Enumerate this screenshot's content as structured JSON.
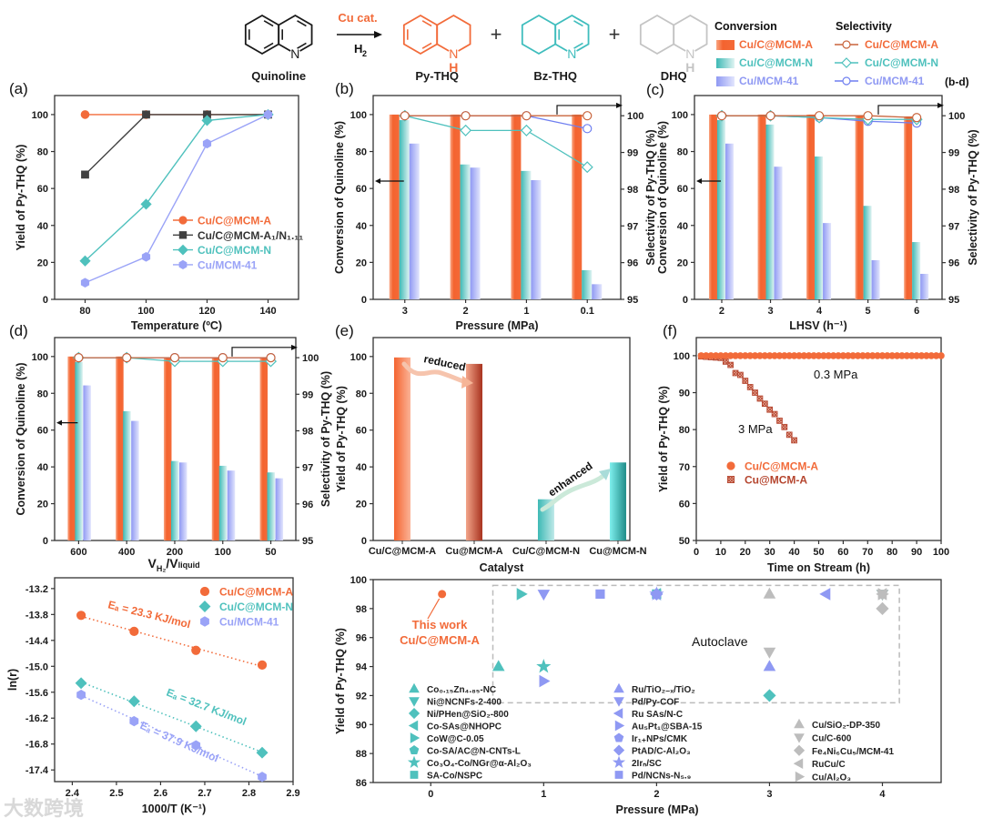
{
  "scheme": {
    "catalyst": "Cu cat.",
    "reagent": "H",
    "reagent_sub": "2",
    "atom_N": "N",
    "atom_H": "H",
    "plus": "+",
    "molecules": [
      {
        "name": "Quinoline",
        "color": "#1a1a1a"
      },
      {
        "name": "Py-THQ",
        "color": "#f26b3a"
      },
      {
        "name": "Bz-THQ",
        "color": "#3fbdbd"
      },
      {
        "name": "DHQ",
        "color": "#c4c4c4"
      }
    ]
  },
  "legend_bd": {
    "conversion_title": "Conversion",
    "selectivity_title": "Selectivity",
    "panel_ref": "(b-d)",
    "items": [
      {
        "label": "Cu/C@MCM-A",
        "bar_color": "#f4632f",
        "line_color": "#c8643c",
        "text_color": "#f26b3a",
        "marker": "circle"
      },
      {
        "label": "Cu/C@MCM-N",
        "bar_color": "#4fc1bd",
        "line_color": "#4fc1bd",
        "text_color": "#4fc1bd",
        "marker": "diamond"
      },
      {
        "label": "Cu/MCM-41",
        "bar_color": "#9aa3f7",
        "line_color": "#6f7ff0",
        "text_color": "#8f99f3",
        "marker": "circle"
      }
    ]
  },
  "watermark": "大数跨境",
  "chart_data": [
    {
      "panel": "(a)",
      "type": "line",
      "xlabel": "Temperature (ºC)",
      "ylabel": "Yield of Py-THQ (%)",
      "x": [
        80,
        100,
        120,
        140
      ],
      "xlim": [
        70,
        150
      ],
      "ylim": [
        0,
        110
      ],
      "xticks": [
        80,
        100,
        120,
        140
      ],
      "yticks": [
        0,
        20,
        40,
        60,
        80,
        100
      ],
      "legend_position": "center-right",
      "series": [
        {
          "name": "Cu/C@MCM-A",
          "marker": "circle",
          "color": "#f26b3a",
          "values": [
            100,
            100,
            100,
            100
          ]
        },
        {
          "name": "Cu/C@MCM-A₁/N₁.₁₁",
          "marker": "square",
          "color": "#404040",
          "values": [
            67.5,
            100,
            100,
            100
          ]
        },
        {
          "name": "Cu/C@MCM-N",
          "marker": "diamond",
          "color": "#4fc1bd",
          "values": [
            20.8,
            51.5,
            96.8,
            100
          ]
        },
        {
          "name": "Cu/MCM-41",
          "marker": "hexagon",
          "color": "#9aa3f7",
          "values": [
            9,
            23,
            84.3,
            100
          ]
        }
      ]
    },
    {
      "panel": "(b)",
      "type": "bar+line",
      "xlabel": "Pressure (MPa)",
      "ylabel": "Conversion of Quinoline (%)",
      "y2label": "Selectivity of Py-THQ (%)",
      "categories": [
        "3",
        "2",
        "1",
        "0.1"
      ],
      "ylim": [
        0,
        110
      ],
      "y2lim": [
        95,
        100.5
      ],
      "yticks": [
        0,
        20,
        40,
        60,
        80,
        100
      ],
      "y2ticks": [
        95,
        96,
        97,
        98,
        99,
        100
      ],
      "conversion": [
        {
          "name": "Cu/C@MCM-A",
          "values": [
            100,
            100,
            100,
            100
          ]
        },
        {
          "name": "Cu/C@MCM-N",
          "values": [
            97,
            73,
            69.5,
            15.8
          ]
        },
        {
          "name": "Cu/MCM-41",
          "values": [
            84.3,
            71.3,
            64.5,
            8.2
          ]
        }
      ],
      "selectivity": [
        {
          "name": "Cu/C@MCM-A",
          "values": [
            100,
            100,
            100,
            100
          ]
        },
        {
          "name": "Cu/C@MCM-N",
          "values": [
            100,
            99.6,
            99.6,
            98.6
          ]
        },
        {
          "name": "Cu/MCM-41",
          "values": [
            100,
            100,
            100,
            99.65
          ]
        }
      ]
    },
    {
      "panel": "(c)",
      "type": "bar+line",
      "xlabel": "LHSV (h⁻¹)",
      "ylabel": "Conversion of Quinoline (%)",
      "y2label": "Selectivity of Py-THQ (%)",
      "categories": [
        "2",
        "3",
        "4",
        "5",
        "6"
      ],
      "ylim": [
        0,
        110
      ],
      "y2lim": [
        95,
        100.5
      ],
      "yticks": [
        0,
        20,
        40,
        60,
        80,
        100
      ],
      "y2ticks": [
        95,
        96,
        97,
        98,
        99,
        100
      ],
      "conversion": [
        {
          "name": "Cu/C@MCM-A",
          "values": [
            100,
            100,
            100,
            99.5,
            99
          ]
        },
        {
          "name": "Cu/C@MCM-N",
          "values": [
            97,
            94.6,
            77.3,
            50.6,
            31
          ]
        },
        {
          "name": "Cu/MCM-41",
          "values": [
            84.3,
            71.8,
            41.3,
            21.2,
            13.8
          ]
        }
      ],
      "selectivity": [
        {
          "name": "Cu/C@MCM-A",
          "values": [
            100,
            100,
            100,
            100,
            99.95
          ]
        },
        {
          "name": "Cu/C@MCM-N",
          "values": [
            100,
            100,
            99.95,
            99.9,
            99.9
          ]
        },
        {
          "name": "Cu/MCM-41",
          "values": [
            100,
            100,
            99.95,
            99.85,
            99.8
          ]
        }
      ]
    },
    {
      "panel": "(d)",
      "type": "bar+line",
      "xlabel_parts": [
        "V",
        "H₂",
        "/V",
        "liquid"
      ],
      "ylabel": "Conversion of Quinoline (%)",
      "y2label": "Selectivity of Py-THQ (%)",
      "categories": [
        "600",
        "400",
        "200",
        "100",
        "50"
      ],
      "ylim": [
        0,
        110
      ],
      "y2lim": [
        95,
        100.5
      ],
      "yticks": [
        0,
        20,
        40,
        60,
        80,
        100
      ],
      "y2ticks": [
        95,
        96,
        97,
        98,
        99,
        100
      ],
      "conversion": [
        {
          "name": "Cu/C@MCM-A",
          "values": [
            100,
            100,
            99.5,
            99.5,
            99.5
          ]
        },
        {
          "name": "Cu/C@MCM-N",
          "values": [
            97,
            70.3,
            43.2,
            40.6,
            37
          ]
        },
        {
          "name": "Cu/MCM-41",
          "values": [
            84.3,
            65,
            42.4,
            38,
            33.8
          ]
        }
      ],
      "selectivity": [
        {
          "name": "Cu/C@MCM-A",
          "values": [
            100,
            100,
            100,
            100,
            100
          ]
        },
        {
          "name": "Cu/C@MCM-N",
          "values": [
            100,
            100,
            99.9,
            99.9,
            99.9
          ]
        },
        {
          "name": "Cu/MCM-41",
          "values": [
            100,
            100,
            100,
            100,
            100
          ]
        }
      ]
    },
    {
      "panel": "(e)",
      "type": "bar",
      "xlabel": "Catalyst",
      "ylabel": "Yield of Py-THQ (%)",
      "categories": [
        "Cu/C@MCM-A",
        "Cu@MCM-A",
        "Cu/C@MCM-N",
        "Cu@MCM-N"
      ],
      "category_colors": [
        "#f26b3a",
        "#b5452e",
        "#5cc8c8",
        "#1f8c88"
      ],
      "values": [
        99.5,
        96,
        22.4,
        42.4
      ],
      "ylim": [
        0,
        110
      ],
      "yticks": [
        0,
        20,
        40,
        60,
        80,
        100
      ],
      "annotations": [
        "reduced",
        "enhanced"
      ]
    },
    {
      "panel": "(f)",
      "type": "scatter",
      "xlabel": "Time on Stream (h)",
      "ylabel": "Yield of Py-THQ (%)",
      "xlim": [
        0,
        100
      ],
      "ylim": [
        50,
        105
      ],
      "xticks": [
        0,
        10,
        20,
        30,
        40,
        50,
        60,
        70,
        80,
        90,
        100
      ],
      "yticks": [
        50,
        60,
        70,
        80,
        90,
        100
      ],
      "annotations": [
        "0.3 MPa",
        "3 MPa"
      ],
      "legend_position": "center-left",
      "series": [
        {
          "name": "Cu/C@MCM-A",
          "marker": "circle",
          "color": "#f26b3a",
          "x": [
            2,
            4,
            6,
            8,
            10,
            12,
            14,
            16,
            18,
            20,
            22,
            24,
            26,
            28,
            30,
            32,
            34,
            36,
            38,
            40,
            42,
            44,
            46,
            48,
            50,
            52,
            54,
            56,
            58,
            60,
            62,
            64,
            66,
            68,
            70,
            72,
            74,
            76,
            78,
            80,
            82,
            84,
            86,
            88,
            90,
            92,
            94,
            96,
            98,
            100
          ],
          "y": [
            100,
            100,
            100,
            100,
            100,
            100,
            100,
            100,
            100,
            100,
            100,
            100,
            100,
            100,
            100,
            100,
            100,
            100,
            100,
            100,
            100,
            100,
            100,
            100,
            100,
            100,
            100,
            100,
            100,
            100,
            100,
            100,
            100,
            100,
            100,
            100,
            100,
            100,
            100,
            100,
            100,
            100,
            100,
            100,
            100,
            100,
            100,
            100,
            100,
            100
          ]
        },
        {
          "name": "Cu@MCM-A",
          "marker": "square-hatched",
          "color": "#b5452e",
          "x": [
            2,
            4,
            6,
            8,
            10,
            12,
            14,
            16,
            18,
            20,
            22,
            24,
            26,
            28,
            30,
            32,
            34,
            36,
            38,
            40
          ],
          "y": [
            99.8,
            99.7,
            99.6,
            99.5,
            99.4,
            98.4,
            97.5,
            95.3,
            94.8,
            93.2,
            91.5,
            90,
            88.4,
            87,
            85.4,
            84.2,
            82.4,
            80.7,
            78.6,
            77.1
          ]
        }
      ]
    },
    {
      "panel": "",
      "type": "scatter",
      "xlabel": "1000/T (K⁻¹)",
      "ylabel": "ln(r)",
      "xlim": [
        2.36,
        2.9
      ],
      "ylim": [
        -17.67,
        -12.95
      ],
      "xticks": [
        2.4,
        2.5,
        2.6,
        2.7,
        2.8,
        2.9
      ],
      "ytick_labels": [
        "-13.2",
        "-13.8",
        "-14.4",
        "-15.0",
        "-15.6",
        "-16.2",
        "-16.8",
        "-17.4"
      ],
      "x": [
        2.42,
        2.54,
        2.68,
        2.83
      ],
      "legend_position": "top-right",
      "series": [
        {
          "name": "Cu/C@MCM-A",
          "marker": "circle",
          "color": "#f26b3a",
          "values": [
            -13.82,
            -14.19,
            -14.63,
            -14.97
          ],
          "Ea": "Eₐ = 23.3 KJ/mol"
        },
        {
          "name": "Cu/C@MCM-N",
          "marker": "diamond",
          "color": "#4fc1bd",
          "values": [
            -15.39,
            -15.81,
            -16.39,
            -17.0
          ],
          "Ea": "Eₐ = 32.7 KJ/mol"
        },
        {
          "name": "Cu/MCM-41",
          "marker": "hexagon",
          "color": "#9aa3f7",
          "values": [
            -15.66,
            -16.27,
            -16.83,
            -17.56
          ],
          "Ea": "Eₐ = 37.9 KJ/mol"
        }
      ]
    },
    {
      "panel": "",
      "type": "scatter",
      "xlabel": "Pressure (MPa)",
      "ylabel": "Yield of Py-THQ (%)",
      "xlim": [
        -0.51,
        4.52
      ],
      "ylim": [
        86,
        100
      ],
      "xticks": [
        0,
        1,
        2,
        3,
        4
      ],
      "yticks": [
        86,
        88,
        90,
        92,
        94,
        96,
        98,
        100
      ],
      "this_work": {
        "label": "This work",
        "name": "Cu/C@MCM-A",
        "x": 0.1,
        "y": 99,
        "color": "#f26b3a"
      },
      "region_label": "Autoclave",
      "series": [
        {
          "name": "Co₀.₁₅Zn₄.₈₅-NC",
          "marker": "tri-up",
          "color": "#4fc1bd",
          "col": 0,
          "points": [
            [
              0.6,
              94
            ]
          ]
        },
        {
          "name": "Ni@NCNFs-2-400",
          "marker": "tri-down",
          "color": "#4fc1bd",
          "col": 0,
          "points": [
            [
              4,
              99
            ]
          ]
        },
        {
          "name": "Ni/PHen@SiO₂-800",
          "marker": "diamond",
          "color": "#4fc1bd",
          "col": 0,
          "points": [
            [
              3,
              92
            ]
          ]
        },
        {
          "name": "Co-SAs@NHOPC",
          "marker": "tri-left",
          "color": "#4fc1bd",
          "col": 0,
          "points": [
            [
              2,
              99
            ]
          ]
        },
        {
          "name": "CoW@C-0.05",
          "marker": "tri-right",
          "color": "#4fc1bd",
          "col": 0,
          "points": [
            [
              0.8,
              99
            ]
          ]
        },
        {
          "name": "Co-SA/AC@N-CNTs-L",
          "marker": "pentagon",
          "color": "#4fc1bd",
          "col": 0,
          "points": [
            [
              2,
              99
            ]
          ]
        },
        {
          "name": "Co₃O₄-Co/NGr@α-Al₂O₃",
          "marker": "star",
          "color": "#4fc1bd",
          "col": 0,
          "points": [
            [
              1,
              94
            ]
          ]
        },
        {
          "name": "SA-Co/NSPC",
          "marker": "square",
          "color": "#4fc1bd",
          "col": 0,
          "points": [
            [
              2,
              99
            ]
          ]
        },
        {
          "name": "Ru/TiO₂₋ₓ/TiO₂",
          "marker": "tri-up",
          "color": "#8f99f3",
          "col": 1,
          "points": [
            [
              3,
              94
            ]
          ]
        },
        {
          "name": "Pd/Py-COF",
          "marker": "tri-down",
          "color": "#8f99f3",
          "col": 1,
          "points": [
            [
              1,
              99
            ]
          ]
        },
        {
          "name": "Ru SAs/N-C",
          "marker": "tri-left",
          "color": "#8f99f3",
          "col": 1,
          "points": [
            [
              3.5,
              99
            ]
          ]
        },
        {
          "name": "Au₅Pt₁@SBA-15",
          "marker": "tri-right",
          "color": "#8f99f3",
          "col": 1,
          "points": [
            [
              1,
              93
            ]
          ]
        },
        {
          "name": "Ir₁₊NPs/CMK",
          "marker": "pentagon",
          "color": "#8f99f3",
          "col": 1,
          "points": [
            [
              2,
              99
            ]
          ]
        },
        {
          "name": "PtAD/C-Al₂O₃",
          "marker": "diamond",
          "color": "#8f99f3",
          "col": 1,
          "points": [
            [
              2,
              99
            ]
          ]
        },
        {
          "name": "2Irₙ/SC",
          "marker": "star",
          "color": "#8f99f3",
          "col": 1,
          "points": [
            [
              2,
              99
            ]
          ]
        },
        {
          "name": "Pd/NCNs-N₅.₉",
          "marker": "square",
          "color": "#8f99f3",
          "col": 1,
          "points": [
            [
              1.5,
              99
            ]
          ]
        },
        {
          "name": "Cu/SiO₂-DP-350",
          "marker": "tri-up",
          "color": "#bdbdbd",
          "col": 2,
          "points": [
            [
              3,
              99
            ]
          ]
        },
        {
          "name": "Cu/C-600",
          "marker": "tri-down",
          "color": "#bdbdbd",
          "col": 2,
          "points": [
            [
              3,
              95
            ],
            [
              4,
              99
            ]
          ]
        },
        {
          "name": "Fe₄Ni₆Cu₅/MCM-41",
          "marker": "diamond",
          "color": "#bdbdbd",
          "col": 2,
          "points": [
            [
              4,
              98
            ]
          ]
        },
        {
          "name": "RuCu/C",
          "marker": "tri-left",
          "color": "#bdbdbd",
          "col": 2,
          "points": [
            [
              4,
              99
            ]
          ]
        },
        {
          "name": "Cu/Al₂O₃",
          "marker": "tri-right",
          "color": "#bdbdbd",
          "col": 2,
          "points": [
            [
              4,
              99
            ]
          ]
        }
      ]
    }
  ]
}
